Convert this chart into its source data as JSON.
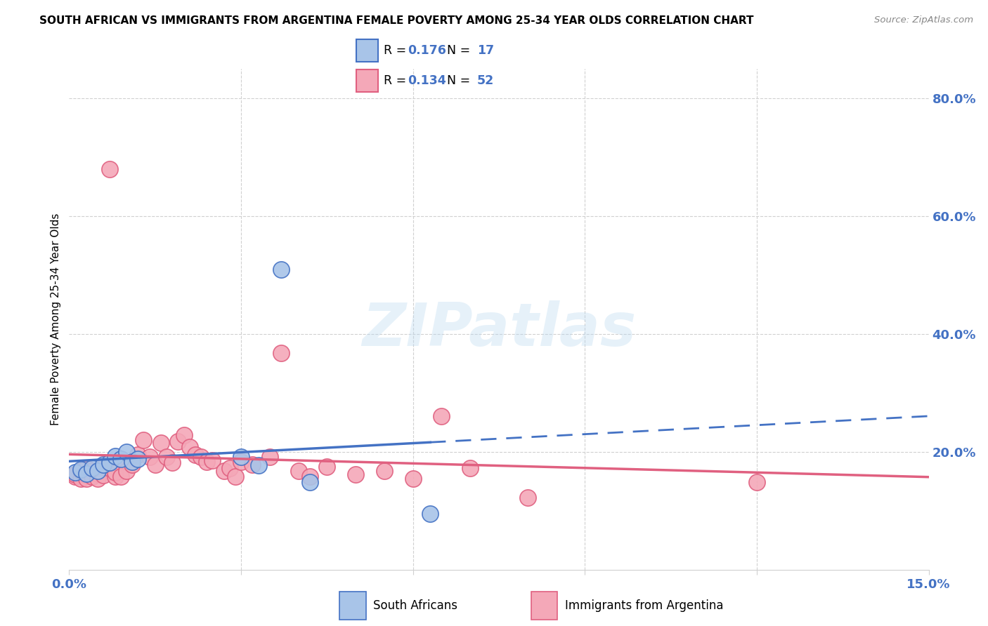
{
  "title": "SOUTH AFRICAN VS IMMIGRANTS FROM ARGENTINA FEMALE POVERTY AMONG 25-34 YEAR OLDS CORRELATION CHART",
  "source": "Source: ZipAtlas.com",
  "ylabel": "Female Poverty Among 25-34 Year Olds",
  "x_min": 0.0,
  "x_max": 0.15,
  "y_min": 0.0,
  "y_max": 0.85,
  "x_ticks": [
    0.0,
    0.03,
    0.06,
    0.09,
    0.12,
    0.15
  ],
  "x_tick_labels": [
    "0.0%",
    "",
    "",
    "",
    "",
    "15.0%"
  ],
  "y_tick_labels_right": [
    "80.0%",
    "60.0%",
    "40.0%",
    "20.0%"
  ],
  "y_ticks_right": [
    0.8,
    0.6,
    0.4,
    0.2
  ],
  "color_blue": "#a8c4e8",
  "color_pink": "#f4a8b8",
  "color_blue_line": "#4472c4",
  "color_pink_line": "#e06080",
  "color_text_blue": "#4472c4",
  "R_blue": 0.176,
  "N_blue": 17,
  "R_pink": 0.134,
  "N_pink": 52,
  "south_african_x": [
    0.001,
    0.002,
    0.003,
    0.004,
    0.005,
    0.006,
    0.007,
    0.008,
    0.009,
    0.01,
    0.011,
    0.012,
    0.03,
    0.033,
    0.037,
    0.042,
    0.063
  ],
  "south_african_y": [
    0.165,
    0.17,
    0.163,
    0.172,
    0.168,
    0.178,
    0.182,
    0.193,
    0.188,
    0.2,
    0.183,
    0.188,
    0.192,
    0.177,
    0.51,
    0.148,
    0.095
  ],
  "argentina_x": [
    0.001,
    0.001,
    0.002,
    0.002,
    0.003,
    0.003,
    0.003,
    0.004,
    0.004,
    0.005,
    0.005,
    0.006,
    0.006,
    0.007,
    0.007,
    0.008,
    0.008,
    0.009,
    0.009,
    0.01,
    0.011,
    0.012,
    0.013,
    0.014,
    0.015,
    0.016,
    0.017,
    0.018,
    0.019,
    0.02,
    0.021,
    0.022,
    0.023,
    0.024,
    0.025,
    0.027,
    0.028,
    0.029,
    0.03,
    0.032,
    0.035,
    0.037,
    0.04,
    0.042,
    0.045,
    0.05,
    0.055,
    0.06,
    0.065,
    0.07,
    0.08,
    0.12
  ],
  "argentina_y": [
    0.158,
    0.162,
    0.155,
    0.168,
    0.16,
    0.172,
    0.155,
    0.168,
    0.158,
    0.163,
    0.155,
    0.175,
    0.16,
    0.172,
    0.68,
    0.158,
    0.165,
    0.188,
    0.158,
    0.168,
    0.178,
    0.195,
    0.22,
    0.192,
    0.178,
    0.215,
    0.192,
    0.182,
    0.218,
    0.228,
    0.208,
    0.195,
    0.192,
    0.183,
    0.185,
    0.168,
    0.172,
    0.158,
    0.183,
    0.178,
    0.192,
    0.368,
    0.168,
    0.158,
    0.175,
    0.162,
    0.168,
    0.155,
    0.26,
    0.172,
    0.122,
    0.148
  ],
  "background_color": "#ffffff",
  "grid_color": "#d0d0d0",
  "watermark": "ZIPatlas"
}
